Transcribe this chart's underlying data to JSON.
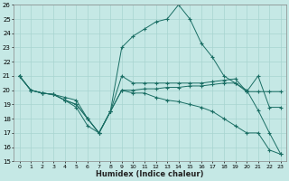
{
  "xlabel": "Humidex (Indice chaleur)",
  "xlim": [
    -0.5,
    23.5
  ],
  "ylim": [
    15,
    26
  ],
  "bg_color": "#c5e8e5",
  "grid_color": "#a8d4d0",
  "line_color": "#1a6e64",
  "lines": [
    {
      "x": [
        0,
        1,
        2,
        3,
        4,
        5,
        6,
        7,
        8,
        9,
        10,
        11,
        12,
        13,
        14,
        15,
        16,
        17,
        18,
        19,
        20,
        21,
        22,
        23
      ],
      "y": [
        21,
        20,
        19.8,
        19.7,
        19.5,
        19.3,
        18.0,
        17.0,
        18.5,
        23.0,
        23.8,
        24.3,
        24.8,
        25.0,
        26.0,
        25.0,
        23.3,
        22.3,
        21.0,
        20.5,
        20.0,
        18.6,
        17.0,
        15.5
      ]
    },
    {
      "x": [
        0,
        1,
        2,
        3,
        4,
        5,
        6,
        7,
        8,
        9,
        10,
        11,
        12,
        13,
        14,
        15,
        16,
        17,
        18,
        19,
        20,
        21,
        22,
        23
      ],
      "y": [
        21,
        20,
        19.8,
        19.7,
        19.3,
        19.0,
        18.0,
        17.0,
        18.5,
        21.0,
        20.5,
        20.5,
        20.5,
        20.5,
        20.5,
        20.5,
        20.5,
        20.6,
        20.7,
        20.8,
        19.9,
        21.0,
        18.8,
        18.8
      ]
    },
    {
      "x": [
        0,
        1,
        2,
        3,
        4,
        5,
        6,
        7,
        8,
        9,
        10,
        11,
        12,
        13,
        14,
        15,
        16,
        17,
        18,
        19,
        20,
        21,
        22,
        23
      ],
      "y": [
        21,
        20,
        19.8,
        19.7,
        19.3,
        19.0,
        18.0,
        17.0,
        18.5,
        20.0,
        20.0,
        20.1,
        20.1,
        20.2,
        20.2,
        20.3,
        20.3,
        20.4,
        20.5,
        20.5,
        19.9,
        19.9,
        19.9,
        19.9
      ]
    },
    {
      "x": [
        0,
        1,
        2,
        3,
        4,
        5,
        6,
        7,
        8,
        9,
        10,
        11,
        12,
        13,
        14,
        15,
        16,
        17,
        18,
        19,
        20,
        21,
        22,
        23
      ],
      "y": [
        21,
        20,
        19.8,
        19.7,
        19.3,
        18.8,
        17.5,
        17.0,
        18.5,
        20.0,
        19.8,
        19.8,
        19.5,
        19.3,
        19.2,
        19.0,
        18.8,
        18.5,
        18.0,
        17.5,
        17.0,
        17.0,
        15.8,
        15.5
      ]
    }
  ]
}
